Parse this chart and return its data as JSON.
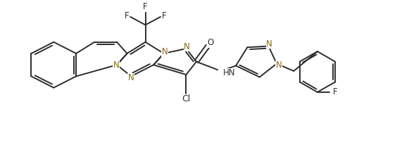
{
  "bg_color": "#ffffff",
  "line_color": "#2d2d2d",
  "line_width": 1.4,
  "font_size": 8.5,
  "figsize": [
    5.81,
    2.33
  ],
  "dpi": 100,
  "xlim": [
    0,
    10
  ],
  "ylim": [
    0,
    4.0
  ],
  "N_color": "#8B6914",
  "C_color": "#2d2d2d"
}
